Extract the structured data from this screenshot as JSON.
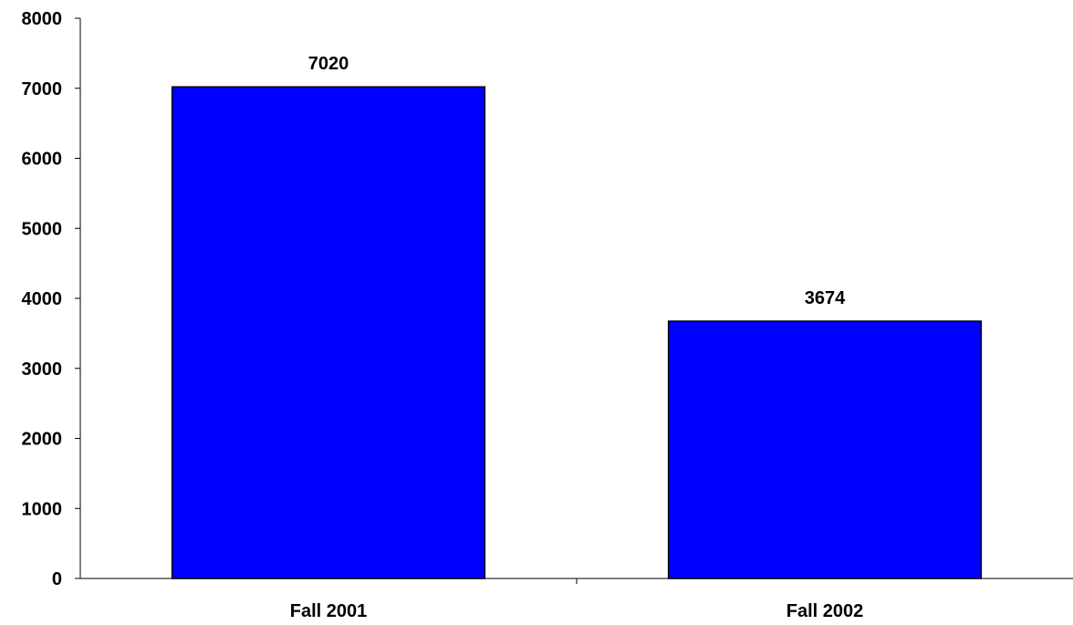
{
  "chart_data": {
    "type": "bar",
    "categories": [
      "Fall 2001",
      "Fall 2002"
    ],
    "values": [
      7020,
      3674
    ],
    "data_labels": [
      "7020",
      "3674"
    ],
    "title": "",
    "xlabel": "",
    "ylabel": "",
    "ylim": [
      0,
      8000
    ],
    "yticks": [
      0,
      1000,
      2000,
      3000,
      4000,
      5000,
      6000,
      7000,
      8000
    ],
    "ytick_labels": [
      "0",
      "1000",
      "2000",
      "3000",
      "4000",
      "5000",
      "6000",
      "7000",
      "8000"
    ],
    "grid": false,
    "legend": "none",
    "colors": {
      "bar_fill": "#0000FF",
      "bar_stroke": "#000000",
      "axis": "#000000",
      "text": "#000000"
    }
  }
}
